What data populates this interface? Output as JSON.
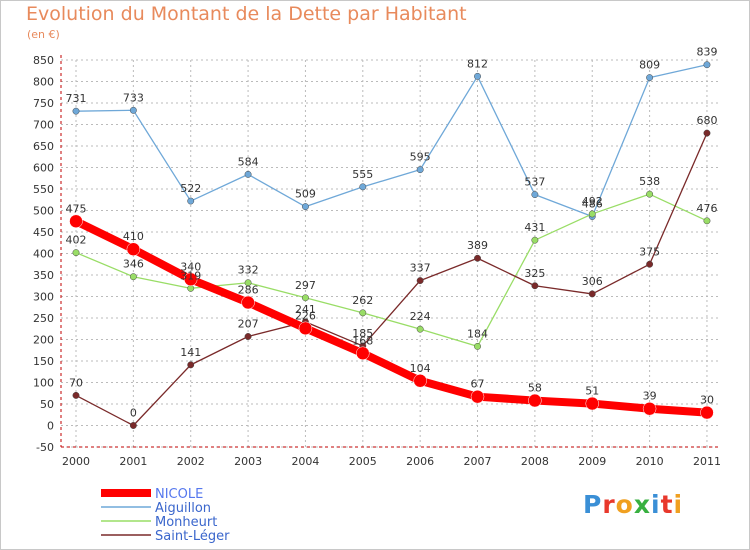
{
  "header": {
    "title": "Evolution du Montant de la Dette par Habitant",
    "unit": "(en €)"
  },
  "logo": {
    "text": "Proxiti",
    "letters": [
      "P",
      "r",
      "o",
      "x",
      "i",
      "t",
      "i"
    ]
  },
  "colors": {
    "background": "#ffffff",
    "grid": "#bbbbbb",
    "axis": "#c00000",
    "title": "#e88a5c"
  },
  "chart_data": {
    "type": "line",
    "title": "Evolution du Montant de la Dette par Habitant",
    "ylabel": "(en €)",
    "xlabel": "",
    "x": [
      "2000",
      "2001",
      "2002",
      "2003",
      "2004",
      "2005",
      "2006",
      "2007",
      "2008",
      "2009",
      "2010",
      "2011"
    ],
    "ylim": [
      -50,
      850
    ],
    "yticks": [
      -50,
      0,
      50,
      100,
      150,
      200,
      250,
      300,
      350,
      400,
      450,
      500,
      550,
      600,
      650,
      700,
      750,
      800,
      850
    ],
    "grid": true,
    "legend_position": "bottom-left",
    "series": [
      {
        "name": "NICOLE",
        "color": "#ff0000",
        "values": [
          475,
          410,
          340,
          286,
          226,
          168,
          104,
          67,
          58,
          51,
          39,
          30
        ]
      },
      {
        "name": "Aiguillon",
        "color": "#6fa8d8",
        "values": [
          731,
          733,
          522,
          584,
          509,
          555,
          595,
          812,
          537,
          486,
          809,
          839
        ]
      },
      {
        "name": "Monheurt",
        "color": "#99dd66",
        "values": [
          402,
          346,
          319,
          332,
          297,
          262,
          224,
          184,
          431,
          492,
          538,
          476
        ]
      },
      {
        "name": "Saint-Léger",
        "color": "#7a2a2a",
        "values": [
          70,
          0,
          141,
          207,
          241,
          185,
          337,
          389,
          325,
          306,
          375,
          680
        ]
      }
    ]
  }
}
